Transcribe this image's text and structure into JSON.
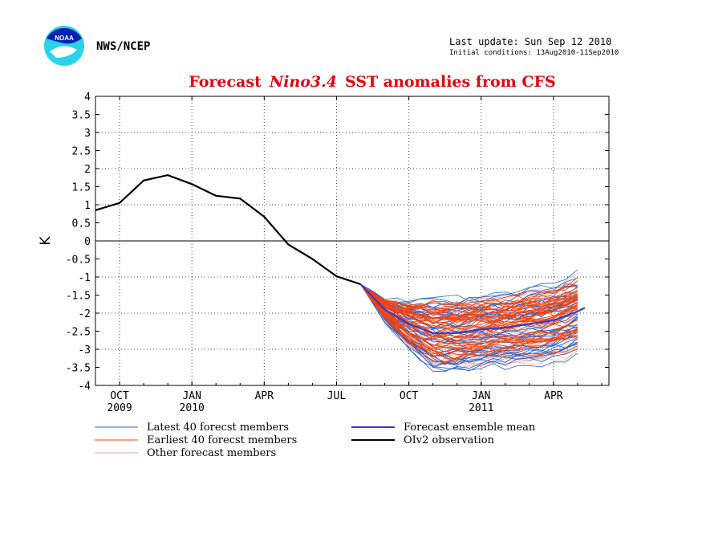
{
  "header": {
    "org": "NWS/NCEP",
    "last_update": "Last update: Sun Sep 12 2010",
    "initial_conditions": "Initial conditions: 13Aug2010-11Sep2010"
  },
  "chart_data": {
    "type": "line",
    "title_prefix": "Forecast",
    "title_italic": "Nino3.4",
    "title_suffix": "SST anomalies from CFS",
    "ylabel": "K",
    "ylim": [
      -4,
      4
    ],
    "yticks": [
      "4",
      "3.5",
      "3",
      "2.5",
      "2",
      "1.5",
      "1",
      "0.5",
      "0",
      "-0.5",
      "-1",
      "-1.5",
      "-2",
      "-2.5",
      "-3",
      "-3.5",
      "-4"
    ],
    "xticks": [
      {
        "month": "OCT",
        "year": "2009",
        "t": 1
      },
      {
        "month": "JAN",
        "year": "2010",
        "t": 4
      },
      {
        "month": "APR",
        "year": "",
        "t": 7
      },
      {
        "month": "JUL",
        "year": "",
        "t": 10
      },
      {
        "month": "OCT",
        "year": "",
        "t": 13
      },
      {
        "month": "JAN",
        "year": "2011",
        "t": 16
      },
      {
        "month": "APR",
        "year": "",
        "t": 19
      }
    ],
    "xlim": [
      0,
      21.3
    ],
    "grid": true,
    "observation": {
      "name": "OIv2 observation",
      "color": "#000000",
      "x": [
        0,
        1,
        2,
        3,
        4,
        5,
        6,
        7,
        8,
        9,
        10,
        11
      ],
      "y": [
        0.85,
        1.05,
        1.67,
        1.82,
        1.57,
        1.25,
        1.17,
        0.67,
        -0.1,
        -0.5,
        -0.98,
        -1.2
      ]
    },
    "ensemble_mean": {
      "name": "Forecast ensemble mean",
      "color": "#2b3dd6",
      "x": [
        11,
        12,
        13,
        14,
        15,
        16,
        17,
        18,
        19,
        20,
        20.3
      ],
      "y": [
        -1.2,
        -1.9,
        -2.3,
        -2.55,
        -2.55,
        -2.45,
        -2.4,
        -2.3,
        -2.2,
        -1.95,
        -1.85
      ]
    },
    "legend": [
      {
        "label": "Latest 40 forecst members",
        "color": "#1f5fd6"
      },
      {
        "label": "Earliest 40 forecst members",
        "color": "#ff4000"
      },
      {
        "label": "Other forecast members",
        "color": "#e8a8a0"
      },
      {
        "label": "Forecast ensemble mean",
        "color": "#2b3dd6"
      },
      {
        "label": "OIv2 observation",
        "color": "#000000"
      }
    ]
  }
}
